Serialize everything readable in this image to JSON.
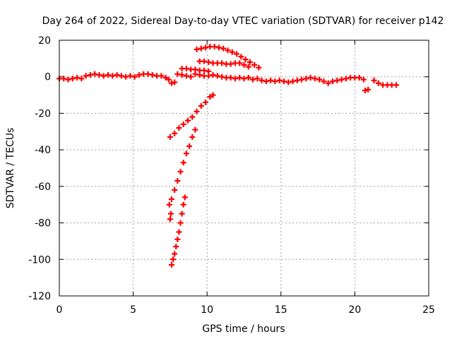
{
  "chart_data": {
    "type": "scatter",
    "title": "Day 264 of 2022, Sidereal Day-to-day VTEC variation (SDTVAR) for receiver p142",
    "xlabel": "GPS time / hours",
    "ylabel": "SDTVAR / TECUs",
    "xlim": [
      0,
      25
    ],
    "ylim": [
      -120,
      20
    ],
    "x_ticks": [
      0,
      5,
      10,
      15,
      20,
      25
    ],
    "x_tick_labels": [
      "0",
      "5",
      "10",
      "15",
      "20",
      "25"
    ],
    "y_ticks": [
      20,
      0,
      -20,
      -40,
      -60,
      -80,
      -100,
      -120
    ],
    "y_tick_labels": [
      "20",
      "0",
      "-20",
      "-40",
      "-60",
      "-80",
      "-100",
      "-120"
    ],
    "grid": true,
    "legend": "none",
    "marker": "plus",
    "series": [
      {
        "name": "main-band",
        "color": "#ff0000",
        "points": [
          [
            0.0,
            -1.0
          ],
          [
            0.3,
            -1.0
          ],
          [
            0.6,
            -1.5
          ],
          [
            0.9,
            -1.0
          ],
          [
            1.2,
            -0.5
          ],
          [
            1.5,
            -1.0
          ],
          [
            1.8,
            0.5
          ],
          [
            2.1,
            1.0
          ],
          [
            2.4,
            1.5
          ],
          [
            2.7,
            1.0
          ],
          [
            3.0,
            0.5
          ],
          [
            3.3,
            1.0
          ],
          [
            3.6,
            0.5
          ],
          [
            3.9,
            1.0
          ],
          [
            4.2,
            0.5
          ],
          [
            4.5,
            0.0
          ],
          [
            4.8,
            0.5
          ],
          [
            5.1,
            0.0
          ],
          [
            5.4,
            1.0
          ],
          [
            5.7,
            1.5
          ],
          [
            6.0,
            1.5
          ],
          [
            6.3,
            1.0
          ],
          [
            6.6,
            0.5
          ],
          [
            6.9,
            0.5
          ],
          [
            7.2,
            -0.5
          ],
          [
            7.4,
            -1.5
          ],
          [
            7.6,
            -3.5
          ],
          [
            7.8,
            -3.0
          ],
          [
            8.0,
            1.5
          ],
          [
            8.3,
            1.0
          ],
          [
            8.6,
            0.5
          ],
          [
            8.9,
            0.0
          ],
          [
            9.2,
            1.5
          ],
          [
            9.5,
            1.0
          ],
          [
            9.8,
            0.5
          ],
          [
            10.1,
            0.5
          ],
          [
            10.4,
            1.0
          ],
          [
            10.7,
            0.5
          ],
          [
            11.0,
            0.0
          ],
          [
            11.3,
            -0.5
          ],
          [
            11.6,
            -0.5
          ],
          [
            11.9,
            -1.0
          ],
          [
            12.2,
            -0.5
          ],
          [
            12.5,
            -1.0
          ],
          [
            12.8,
            -0.5
          ],
          [
            13.1,
            -1.5
          ],
          [
            13.4,
            -1.0
          ],
          [
            13.7,
            -2.0
          ],
          [
            14.0,
            -2.5
          ],
          [
            14.3,
            -2.0
          ],
          [
            14.6,
            -2.5
          ],
          [
            14.9,
            -2.0
          ],
          [
            15.2,
            -2.5
          ],
          [
            15.5,
            -3.0
          ],
          [
            15.8,
            -2.5
          ],
          [
            16.1,
            -2.0
          ],
          [
            16.4,
            -1.5
          ],
          [
            16.7,
            -1.0
          ],
          [
            17.0,
            -0.5
          ],
          [
            17.3,
            -1.0
          ],
          [
            17.6,
            -1.5
          ],
          [
            17.9,
            -2.5
          ],
          [
            18.2,
            -3.5
          ],
          [
            18.5,
            -2.5
          ],
          [
            18.8,
            -2.0
          ],
          [
            19.1,
            -1.5
          ],
          [
            19.4,
            -1.0
          ],
          [
            19.7,
            -0.5
          ],
          [
            20.0,
            -0.5
          ],
          [
            20.3,
            -0.5
          ],
          [
            20.6,
            -1.5
          ],
          [
            20.7,
            -7.5
          ],
          [
            20.9,
            -7.0
          ],
          [
            21.3,
            -2.0
          ],
          [
            21.6,
            -3.5
          ],
          [
            21.9,
            -4.5
          ],
          [
            22.2,
            -4.5
          ],
          [
            22.5,
            -4.5
          ],
          [
            22.8,
            -4.5
          ]
        ]
      },
      {
        "name": "upper-arcs",
        "color": "#ff0000",
        "points": [
          [
            9.3,
            15.0
          ],
          [
            9.6,
            15.5
          ],
          [
            9.9,
            16.0
          ],
          [
            10.2,
            16.5
          ],
          [
            10.5,
            16.5
          ],
          [
            10.8,
            16.0
          ],
          [
            11.1,
            15.5
          ],
          [
            11.4,
            14.5
          ],
          [
            11.7,
            13.5
          ],
          [
            12.0,
            12.5
          ],
          [
            12.3,
            11.0
          ],
          [
            12.6,
            9.5
          ],
          [
            12.9,
            8.0
          ],
          [
            13.2,
            6.5
          ],
          [
            13.5,
            5.0
          ],
          [
            9.5,
            8.5
          ],
          [
            9.8,
            8.5
          ],
          [
            10.1,
            8.0
          ],
          [
            10.4,
            7.5
          ],
          [
            10.7,
            7.5
          ],
          [
            11.0,
            7.5
          ],
          [
            11.3,
            7.0
          ],
          [
            11.6,
            7.0
          ],
          [
            11.9,
            7.5
          ],
          [
            12.2,
            7.5
          ],
          [
            12.5,
            6.5
          ],
          [
            12.8,
            5.5
          ],
          [
            8.3,
            4.5
          ],
          [
            8.6,
            4.5
          ],
          [
            8.9,
            4.0
          ],
          [
            9.2,
            4.0
          ],
          [
            9.5,
            3.5
          ],
          [
            9.8,
            3.5
          ],
          [
            10.1,
            3.0
          ]
        ]
      },
      {
        "name": "descending-arcs",
        "color": "#ff0000",
        "points": [
          [
            7.5,
            -33.0
          ],
          [
            7.8,
            -31.0
          ],
          [
            8.1,
            -28.0
          ],
          [
            8.4,
            -26.0
          ],
          [
            8.7,
            -24.0
          ],
          [
            9.0,
            -22.0
          ],
          [
            9.3,
            -19.0
          ],
          [
            9.6,
            -16.0
          ],
          [
            9.9,
            -14.0
          ],
          [
            10.2,
            -11.0
          ],
          [
            10.4,
            -10.0
          ],
          [
            9.2,
            -29.0
          ],
          [
            9.0,
            -33.0
          ],
          [
            8.8,
            -38.0
          ],
          [
            8.6,
            -42.0
          ],
          [
            8.4,
            -47.0
          ],
          [
            8.2,
            -52.0
          ],
          [
            8.0,
            -57.0
          ],
          [
            7.8,
            -62.0
          ],
          [
            7.6,
            -67.0
          ],
          [
            7.45,
            -70.0
          ],
          [
            7.55,
            -75.0
          ],
          [
            7.5,
            -78.0
          ],
          [
            8.5,
            -66.0
          ],
          [
            8.4,
            -70.0
          ],
          [
            8.3,
            -75.0
          ],
          [
            8.2,
            -80.0
          ],
          [
            8.1,
            -85.0
          ],
          [
            8.0,
            -89.0
          ],
          [
            7.9,
            -93.0
          ],
          [
            7.8,
            -97.0
          ],
          [
            7.7,
            -100.0
          ],
          [
            7.6,
            -103.0
          ]
        ]
      }
    ]
  }
}
